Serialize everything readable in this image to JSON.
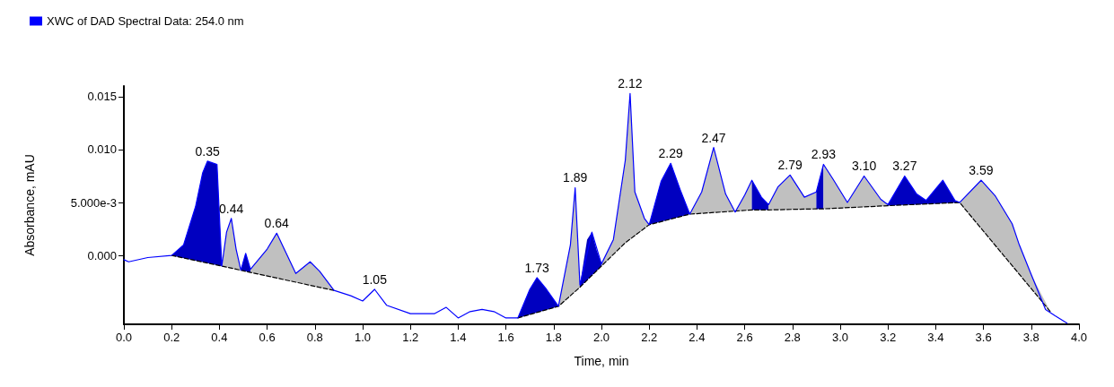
{
  "chart_data": {
    "type": "line",
    "xlabel": "Time, min",
    "ylabel": "Absorbance, mAU",
    "legend": "top left",
    "grid": false,
    "marker": "none",
    "xlim": [
      0,
      4
    ],
    "ylim": [
      -0.0065,
      0.016
    ],
    "xticks": [
      {
        "value": 0,
        "label": "0.0"
      },
      {
        "value": 0.2,
        "label": "0.2"
      },
      {
        "value": 0.4,
        "label": "0.4"
      },
      {
        "value": 0.6,
        "label": "0.6"
      },
      {
        "value": 0.8,
        "label": "0.8"
      },
      {
        "value": 1,
        "label": "1.0"
      },
      {
        "value": 1.2,
        "label": "1.2"
      },
      {
        "value": 1.4,
        "label": "1.4"
      },
      {
        "value": 1.6,
        "label": "1.6"
      },
      {
        "value": 1.8,
        "label": "1.8"
      },
      {
        "value": 2,
        "label": "2.0"
      },
      {
        "value": 2.2,
        "label": "2.2"
      },
      {
        "value": 2.4,
        "label": "2.4"
      },
      {
        "value": 2.6,
        "label": "2.6"
      },
      {
        "value": 2.8,
        "label": "2.8"
      },
      {
        "value": 3,
        "label": "3.0"
      },
      {
        "value": 3.2,
        "label": "3.2"
      },
      {
        "value": 3.4,
        "label": "3.4"
      },
      {
        "value": 3.6,
        "label": "3.6"
      },
      {
        "value": 3.8,
        "label": "3.8"
      },
      {
        "value": 4,
        "label": "4.0"
      }
    ],
    "yticks": [
      {
        "value": 0,
        "label": "0.000"
      },
      {
        "value": 0.005,
        "label": "5.000e-3"
      },
      {
        "value": 0.01,
        "label": "0.010"
      },
      {
        "value": 0.015,
        "label": "0.015"
      }
    ],
    "series": [
      {
        "type": "area",
        "color": "#0000c0",
        "x": [
          0.2,
          0.25,
          0.3,
          0.33,
          0.35,
          0.39,
          0.41
        ],
        "values": [
          0,
          0.001,
          0.0046,
          0.0078,
          0.0089,
          0.0086,
          -0.001
        ]
      },
      {
        "type": "area",
        "color": "#c0c0c0",
        "x": [
          0.41,
          0.43,
          0.45,
          0.47,
          0.49
        ],
        "values": [
          -0.001,
          0.0022,
          0.0035,
          0.0006,
          -0.0014
        ]
      },
      {
        "type": "area",
        "color": "#0000c0",
        "x": [
          0.49,
          0.51,
          0.53
        ],
        "values": [
          -0.0014,
          0.0002,
          -0.0013
        ]
      },
      {
        "type": "area",
        "color": "#c0c0c0",
        "x": [
          0.53,
          0.6,
          0.64,
          0.68,
          0.72,
          0.78,
          0.82,
          0.88
        ],
        "values": [
          -0.0013,
          0.0006,
          0.0021,
          0.0002,
          -0.0017,
          -0.0006,
          -0.0015,
          -0.0033
        ]
      },
      {
        "type": "area",
        "color": "#0000c0",
        "x": [
          1.65,
          1.7,
          1.73,
          1.77,
          1.82
        ],
        "values": [
          -0.0059,
          -0.0032,
          -0.0021,
          -0.0032,
          -0.0048
        ]
      },
      {
        "type": "area",
        "color": "#c0c0c0",
        "x": [
          1.82,
          1.87,
          1.89,
          1.91
        ],
        "values": [
          -0.0048,
          0.001,
          0.0064,
          -0.0028
        ]
      },
      {
        "type": "area",
        "color": "#0000c0",
        "x": [
          1.91,
          1.94,
          1.96,
          1.98,
          2.0
        ],
        "values": [
          -0.0028,
          0.0015,
          0.0022,
          0.0005,
          -0.0008
        ]
      },
      {
        "type": "area",
        "color": "#c0c0c0",
        "x": [
          2.0,
          2.05,
          2.1,
          2.12,
          2.14,
          2.18,
          2.2
        ],
        "values": [
          -0.0008,
          0.0015,
          0.009,
          0.0153,
          0.006,
          0.0035,
          0.0029
        ]
      },
      {
        "type": "area",
        "color": "#0000c0",
        "x": [
          2.2,
          2.25,
          2.29,
          2.33,
          2.37
        ],
        "values": [
          0.0029,
          0.007,
          0.0087,
          0.0062,
          0.0039
        ]
      },
      {
        "type": "area",
        "color": "#c0c0c0",
        "x": [
          2.37,
          2.42,
          2.47,
          2.52,
          2.56,
          2.6,
          2.63
        ],
        "values": [
          0.0039,
          0.006,
          0.0102,
          0.0058,
          0.0041,
          0.0057,
          0.0071
        ]
      },
      {
        "type": "area",
        "color": "#0000c0",
        "x": [
          2.63,
          2.67,
          2.7
        ],
        "values": [
          0.0071,
          0.0055,
          0.0048
        ]
      },
      {
        "type": "area",
        "color": "#c0c0c0",
        "x": [
          2.7,
          2.74,
          2.79,
          2.85,
          2.9
        ],
        "values": [
          0.0048,
          0.0065,
          0.0076,
          0.0055,
          0.006
        ]
      },
      {
        "type": "area",
        "color": "#0000c0",
        "x": [
          2.9,
          2.93
        ],
        "values": [
          0.006,
          0.0086
        ]
      },
      {
        "type": "area",
        "color": "#c0c0c0",
        "x": [
          2.93,
          2.97,
          3.03,
          3.1,
          3.17,
          3.2
        ],
        "values": [
          0.0086,
          0.0072,
          0.005,
          0.0075,
          0.0053,
          0.0048
        ]
      },
      {
        "type": "area",
        "color": "#0000c0",
        "x": [
          3.2,
          3.27,
          3.32,
          3.36,
          3.43,
          3.48,
          3.5
        ],
        "values": [
          0.0048,
          0.0075,
          0.0058,
          0.0052,
          0.0071,
          0.0052,
          0.005
        ]
      },
      {
        "type": "area",
        "color": "#c0c0c0",
        "x": [
          3.5,
          3.59,
          3.65,
          3.72,
          3.75,
          3.8,
          3.88
        ],
        "values": [
          0.005,
          0.0071,
          0.0056,
          0.003,
          0.001,
          -0.0018,
          -0.0053
        ]
      },
      {
        "color": "#000000",
        "line_style": "dashed",
        "x": [
          0.2,
          0.41,
          0.49,
          0.53,
          0.88,
          1.2,
          1.65,
          1.82,
          1.91,
          2.0,
          2.1,
          2.2,
          2.37,
          2.63,
          2.7,
          2.9,
          2.93,
          3.2,
          3.5,
          3.88
        ],
        "values": [
          0,
          -0.001,
          -0.0014,
          -0.0016,
          -0.0033,
          null,
          -0.0059,
          -0.0048,
          -0.003,
          -0.001,
          0.0012,
          0.0029,
          0.0039,
          0.0043,
          0.0043,
          0.0044,
          0.0044,
          0.0047,
          0.005,
          -0.0053
        ]
      },
      {
        "name": "XWC of DAD Spectral Data: 254.0 nm",
        "color": "#0000ff",
        "line_style": "solid",
        "x": [
          0,
          0.02,
          0.1,
          0.2,
          0.25,
          0.3,
          0.33,
          0.35,
          0.39,
          0.41,
          0.43,
          0.45,
          0.47,
          0.49,
          0.51,
          0.53,
          0.6,
          0.64,
          0.68,
          0.72,
          0.78,
          0.82,
          0.88,
          0.95,
          1.0,
          1.05,
          1.1,
          1.2,
          1.3,
          1.35,
          1.4,
          1.45,
          1.5,
          1.55,
          1.6,
          1.65,
          1.7,
          1.73,
          1.77,
          1.82,
          1.87,
          1.89,
          1.91,
          1.96,
          2.0,
          2.05,
          2.1,
          2.12,
          2.14,
          2.18,
          2.2,
          2.25,
          2.29,
          2.33,
          2.37,
          2.42,
          2.47,
          2.52,
          2.56,
          2.6,
          2.63,
          2.67,
          2.7,
          2.74,
          2.79,
          2.85,
          2.9,
          2.93,
          2.97,
          3.03,
          3.1,
          3.17,
          3.2,
          3.27,
          3.32,
          3.36,
          3.43,
          3.48,
          3.5,
          3.59,
          3.65,
          3.72,
          3.75,
          3.8,
          3.86,
          3.9,
          3.95
        ],
        "values": [
          -0.0004,
          -0.0006,
          -0.0002,
          0,
          0.001,
          0.0046,
          0.0078,
          0.0089,
          0.0086,
          -0.001,
          0.0022,
          0.0035,
          0.0006,
          -0.0014,
          0.0002,
          -0.0013,
          0.0006,
          0.0021,
          0.0002,
          -0.0017,
          -0.0006,
          -0.0015,
          -0.0033,
          -0.0038,
          -0.0043,
          -0.0032,
          -0.0047,
          -0.0055,
          -0.0055,
          -0.0049,
          -0.0059,
          -0.0053,
          -0.0051,
          -0.0053,
          -0.0059,
          -0.0059,
          -0.0032,
          -0.0021,
          -0.0032,
          -0.0048,
          0.001,
          0.0064,
          -0.0028,
          0.0022,
          -0.0008,
          0.0015,
          0.009,
          0.0153,
          0.006,
          0.0035,
          0.0029,
          0.007,
          0.0087,
          0.0062,
          0.0039,
          0.006,
          0.0102,
          0.0058,
          0.0041,
          0.0057,
          0.0071,
          0.0055,
          0.0048,
          0.0065,
          0.0076,
          0.0055,
          0.006,
          0.0086,
          0.0072,
          0.005,
          0.0075,
          0.0053,
          0.0048,
          0.0075,
          0.0058,
          0.0052,
          0.0071,
          0.0052,
          0.005,
          0.0071,
          0.0056,
          0.003,
          0.001,
          -0.0018,
          -0.0051,
          -0.0057,
          -0.0064
        ]
      }
    ],
    "annotations": [
      {
        "text": "0.35",
        "x": 0.35,
        "y": 0.0089
      },
      {
        "text": "0.44",
        "x": 0.45,
        "y": 0.0035
      },
      {
        "text": "0.64",
        "x": 0.64,
        "y": 0.0021
      },
      {
        "text": "1.05",
        "x": 1.05,
        "y": -0.0032
      },
      {
        "text": "1.73",
        "x": 1.73,
        "y": -0.0021
      },
      {
        "text": "1.89",
        "x": 1.89,
        "y": 0.0064
      },
      {
        "text": "2.12",
        "x": 2.12,
        "y": 0.0153
      },
      {
        "text": "2.29",
        "x": 2.29,
        "y": 0.0087
      },
      {
        "text": "2.47",
        "x": 2.47,
        "y": 0.0102
      },
      {
        "text": "2.79",
        "x": 2.79,
        "y": 0.0076
      },
      {
        "text": "2.93",
        "x": 2.93,
        "y": 0.0086
      },
      {
        "text": "3.10",
        "x": 3.1,
        "y": 0.0075
      },
      {
        "text": "3.27",
        "x": 3.27,
        "y": 0.0075
      },
      {
        "text": "3.59",
        "x": 3.59,
        "y": 0.0071
      }
    ]
  }
}
